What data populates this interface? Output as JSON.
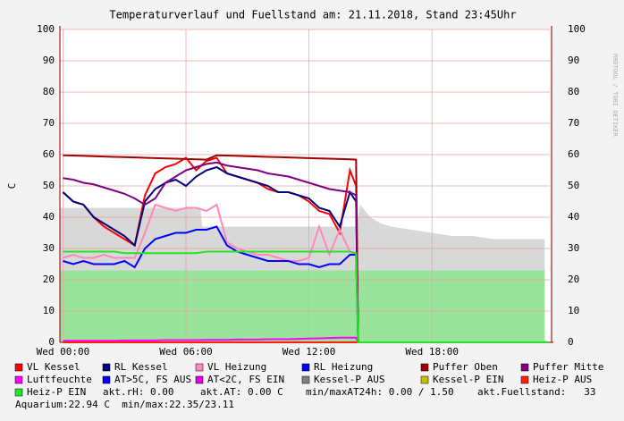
{
  "chart_data": {
    "type": "line",
    "title": "Temperaturverlauf und Fuellstand am: 21.11.2018, Stand 23:45Uhr",
    "ylabel": "C",
    "watermark": "RRDTOOL / TOBI OETIKER",
    "x": [
      0,
      0.5,
      1,
      1.5,
      2,
      2.5,
      3,
      3.5,
      4,
      4.5,
      5,
      5.5,
      6,
      6.5,
      7,
      7.5,
      8,
      8.5,
      9,
      9.5,
      10,
      10.5,
      11,
      11.5,
      12,
      12.5,
      13,
      13.5,
      14,
      14.3,
      14.4,
      23.7
    ],
    "xlim": [
      -0.15,
      23.75
    ],
    "xticks": [
      {
        "value": 0,
        "label": "Wed 00:00"
      },
      {
        "value": 6,
        "label": "Wed 06:00"
      },
      {
        "value": 12,
        "label": "Wed 12:00"
      },
      {
        "value": 18,
        "label": "Wed 18:00"
      }
    ],
    "ylim": [
      0,
      100
    ],
    "yticks": [
      0,
      10,
      20,
      30,
      40,
      50,
      60,
      70,
      80,
      90,
      100
    ],
    "grid": true,
    "areas": [
      {
        "color": "#d8d8d8",
        "x": [
          -0.15,
          6.7,
          6.8,
          14.3,
          14.5,
          15,
          15.5,
          16,
          17,
          18,
          19,
          20,
          21,
          22,
          23.5
        ],
        "values": [
          43,
          43,
          37,
          37,
          44,
          40,
          38,
          37,
          36,
          35,
          34,
          34,
          33,
          33,
          33
        ]
      },
      {
        "color": "#9ae39a",
        "x": [
          -0.15,
          23.5
        ],
        "values": [
          23,
          23
        ]
      }
    ],
    "series": [
      {
        "name": "VL Kessel",
        "color": "#ff0000",
        "values": [
          48,
          45,
          44,
          40,
          37,
          35,
          33,
          31,
          47,
          54,
          56,
          57,
          59,
          55,
          58,
          59,
          54,
          53,
          52,
          51,
          49,
          48,
          48,
          47,
          45,
          42,
          41,
          35,
          55,
          50,
          0,
          0
        ]
      },
      {
        "name": "RL Kessel",
        "color": "#000080",
        "values": [
          48,
          45,
          44,
          40,
          38,
          36,
          34,
          31,
          45,
          49,
          51,
          52,
          50,
          53,
          55,
          56,
          54,
          53,
          52,
          51,
          50,
          48,
          48,
          47,
          46,
          43,
          42,
          37,
          48,
          45,
          0,
          0
        ]
      },
      {
        "name": "VL Heizung",
        "color": "#ff88bb",
        "values": [
          27,
          28,
          27,
          27,
          28,
          27,
          27,
          27,
          35,
          44,
          43,
          42,
          43,
          43,
          42,
          44,
          32,
          30,
          29,
          28,
          28,
          27,
          26,
          26,
          27,
          37,
          28,
          36,
          29,
          28,
          0,
          0
        ]
      },
      {
        "name": "RL Heizung",
        "color": "#0000ff",
        "values": [
          26,
          25,
          26,
          25,
          25,
          25,
          26,
          24,
          30,
          33,
          34,
          35,
          35,
          36,
          36,
          37,
          31,
          29,
          28,
          27,
          26,
          26,
          26,
          25,
          25,
          24,
          25,
          25,
          28,
          28,
          0,
          0
        ]
      },
      {
        "name": "Puffer Oben",
        "color": "#a00000",
        "values": [
          59.8,
          59.7,
          59.6,
          59.5,
          59.4,
          59.3,
          59.2,
          59.1,
          59.0,
          58.9,
          58.8,
          58.7,
          58.6,
          58.5,
          58.4,
          59.8,
          59.7,
          59.6,
          59.5,
          59.4,
          59.3,
          59.2,
          59.1,
          59.0,
          58.9,
          58.8,
          58.7,
          58.6,
          58.5,
          58.4,
          0,
          0
        ]
      },
      {
        "name": "Puffer Mitte",
        "color": "#800080",
        "values": [
          52.5,
          52,
          51,
          50.5,
          49.5,
          48.5,
          47.5,
          46,
          44,
          46,
          51,
          53,
          55,
          56,
          57,
          57.5,
          56.5,
          56,
          55.5,
          55,
          54,
          53.5,
          53,
          52,
          51,
          50,
          49,
          48.5,
          48,
          47,
          0,
          0
        ]
      },
      {
        "name": "Luftfeuchte",
        "color": "#ff00ff",
        "values": [
          0.5,
          0.5,
          0.5,
          0.5,
          0.5,
          0.5,
          0.6,
          0.6,
          0.6,
          0.6,
          0.7,
          0.7,
          0.7,
          0.7,
          0.8,
          0.8,
          0.8,
          0.9,
          0.9,
          0.9,
          1,
          1,
          1,
          1.1,
          1.2,
          1.3,
          1.4,
          1.5,
          1.5,
          1.5,
          0,
          0
        ]
      },
      {
        "name": "AT>5C, FS AUS",
        "color": "#0000ff",
        "values": [
          0,
          0,
          0,
          0,
          0,
          0,
          0,
          0,
          0,
          0,
          0,
          0,
          0,
          0,
          0,
          0,
          0,
          0,
          0,
          0,
          0,
          0,
          0,
          0,
          0,
          0,
          0,
          0,
          0,
          0,
          0,
          0
        ]
      },
      {
        "name": "AT<2C, FS EIN",
        "color": "#e000e0",
        "values": [
          0,
          0,
          0,
          0,
          0,
          0,
          0,
          0,
          0,
          0,
          0,
          0,
          0,
          0,
          0,
          0,
          0,
          0,
          0,
          0,
          0,
          0,
          0,
          0,
          0,
          0,
          0,
          0,
          0,
          0,
          0,
          0
        ]
      },
      {
        "name": "Kessel-P AUS",
        "color": "#808080",
        "values": [
          0,
          0,
          0,
          0,
          0,
          0,
          0,
          0,
          0,
          0,
          0,
          0,
          0,
          0,
          0,
          0,
          0,
          0,
          0,
          0,
          0,
          0,
          0,
          0,
          0,
          0,
          0,
          0,
          0,
          0,
          0,
          0
        ]
      },
      {
        "name": "Kessel-P EIN",
        "color": "#c8c000",
        "values": [
          0,
          0,
          0,
          0,
          0,
          0,
          0,
          0,
          0,
          0,
          0,
          0,
          0,
          0,
          0,
          0,
          0,
          0,
          0,
          0,
          0,
          0,
          0,
          0,
          0,
          0,
          0,
          0,
          0,
          0,
          0,
          0
        ]
      },
      {
        "name": "Heiz-P AUS",
        "color": "#ff2000",
        "values": [
          0,
          0,
          0,
          0,
          0,
          0,
          0,
          0,
          0,
          0,
          0,
          0,
          0,
          0,
          0,
          0,
          0,
          0,
          0,
          0,
          0,
          0,
          0,
          0,
          0,
          0,
          0,
          0,
          0,
          0,
          0,
          0
        ]
      },
      {
        "name": "Heiz-P EIN",
        "color": "#22e622",
        "values": [
          29,
          29,
          29,
          29,
          29,
          29,
          28.5,
          28.5,
          28.5,
          28.5,
          28.5,
          28.5,
          28.5,
          28.5,
          29,
          29,
          29,
          29,
          29,
          29,
          29,
          29,
          29,
          29,
          29,
          29,
          29,
          29,
          29,
          28.5,
          0,
          0
        ]
      }
    ],
    "notes": [
      "akt.rH: 0.00",
      "akt.AT: 0.00 C",
      "min/maxAT24h: 0.00 / 1.50",
      "akt.Fuellstand:   33",
      "Aquarium:22.94 C  min/max:22.35/23.11"
    ]
  }
}
